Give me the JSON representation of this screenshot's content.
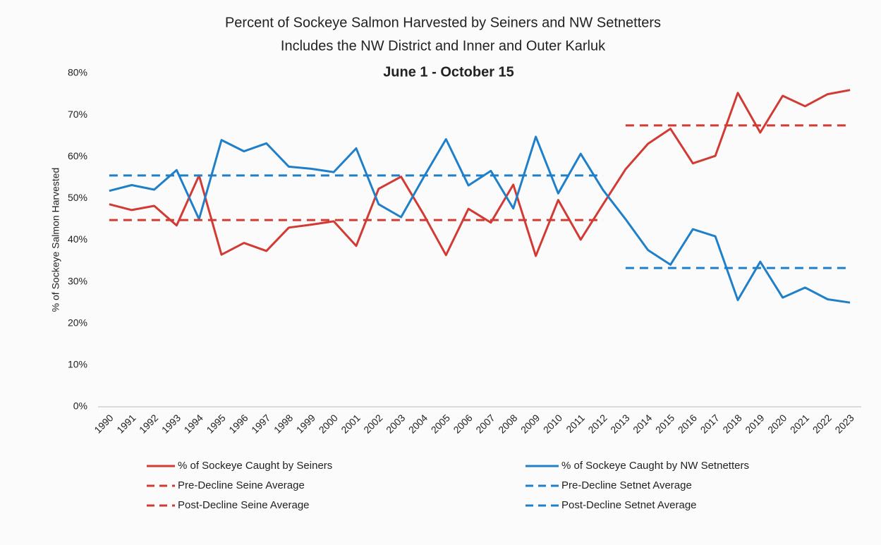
{
  "chart_data": {
    "type": "line",
    "title": "Percent of Sockeye Salmon Harvested by Seiners and NW Setnetters",
    "subtitle": "Includes the NW District and Inner and Outer Karluk",
    "date_range": "June 1 - October 15",
    "y_label": "% of Sockeye Salmon Harvested",
    "categories": [
      "1990",
      "1991",
      "1992",
      "1993",
      "1994",
      "1995",
      "1996",
      "1997",
      "1998",
      "1999",
      "2000",
      "2001",
      "2002",
      "2003",
      "2004",
      "2005",
      "2006",
      "2007",
      "2008",
      "2009",
      "2010",
      "2011",
      "2012",
      "2013",
      "2014",
      "2015",
      "2016",
      "2017",
      "2018",
      "2019",
      "2020",
      "2021",
      "2022",
      "2023"
    ],
    "ylim": [
      0,
      80
    ],
    "yticks": [
      {
        "value": 0,
        "label": "0%"
      },
      {
        "value": 10,
        "label": "10%"
      },
      {
        "value": 20,
        "label": "20%"
      },
      {
        "value": 30,
        "label": "30%"
      },
      {
        "value": 40,
        "label": "40%"
      },
      {
        "value": 50,
        "label": "50%"
      },
      {
        "value": 60,
        "label": "60%"
      },
      {
        "value": 70,
        "label": "70%"
      },
      {
        "value": 80,
        "label": "80%"
      }
    ],
    "grid": false,
    "series": [
      {
        "name": "% of Sockeye Caught by Seiners",
        "color": "#d23a34",
        "dashed": false,
        "values": [
          48.6,
          47.2,
          48.2,
          43.5,
          55.5,
          36.5,
          39.3,
          37.4,
          43,
          43.7,
          44.5,
          38.6,
          52.3,
          55.2,
          46.2,
          36.4,
          47.5,
          44.2,
          53.3,
          36.2,
          49.6,
          40.1,
          48.6,
          57,
          63.1,
          66.7,
          58.4,
          60.2,
          75.3,
          65.8,
          74.6,
          72.1,
          75,
          76
        ]
      },
      {
        "name": "% of Sockeye Caught by NW Setnetters",
        "color": "#1f7fc8",
        "dashed": false,
        "values": [
          51.8,
          53.2,
          52.1,
          56.8,
          45,
          64,
          61.3,
          63.2,
          57.6,
          57.1,
          56.3,
          62,
          48.6,
          45.5,
          55,
          64.2,
          53.1,
          56.6,
          47.6,
          64.8,
          51.2,
          60.7,
          52,
          45,
          37.6,
          34.1,
          42.6,
          40.9,
          25.6,
          34.8,
          26.2,
          28.6,
          25.8,
          25
        ]
      },
      {
        "name": "Pre-Decline Seine Average",
        "color": "#d23a34",
        "dashed": true,
        "values": [
          44.8,
          44.8,
          44.8,
          44.8,
          44.8,
          44.8,
          44.8,
          44.8,
          44.8,
          44.8,
          44.8,
          44.8,
          44.8,
          44.8,
          44.8,
          44.8,
          44.8,
          44.8,
          44.8,
          44.8,
          44.8,
          44.8,
          44.8,
          null,
          null,
          null,
          null,
          null,
          null,
          null,
          null,
          null,
          null,
          null
        ]
      },
      {
        "name": "Pre-Decline Setnet Average",
        "color": "#1f7fc8",
        "dashed": true,
        "values": [
          55.5,
          55.5,
          55.5,
          55.5,
          55.5,
          55.5,
          55.5,
          55.5,
          55.5,
          55.5,
          55.5,
          55.5,
          55.5,
          55.5,
          55.5,
          55.5,
          55.5,
          55.5,
          55.5,
          55.5,
          55.5,
          55.5,
          55.5,
          null,
          null,
          null,
          null,
          null,
          null,
          null,
          null,
          null,
          null,
          null
        ]
      },
      {
        "name": "Post-Decline Seine Average",
        "color": "#d23a34",
        "dashed": true,
        "values": [
          null,
          null,
          null,
          null,
          null,
          null,
          null,
          null,
          null,
          null,
          null,
          null,
          null,
          null,
          null,
          null,
          null,
          null,
          null,
          null,
          null,
          null,
          null,
          67.5,
          67.5,
          67.5,
          67.5,
          67.5,
          67.5,
          67.5,
          67.5,
          67.5,
          67.5,
          67.5
        ]
      },
      {
        "name": "Post-Decline Setnet Average",
        "color": "#1f7fc8",
        "dashed": true,
        "values": [
          null,
          null,
          null,
          null,
          null,
          null,
          null,
          null,
          null,
          null,
          null,
          null,
          null,
          null,
          null,
          null,
          null,
          null,
          null,
          null,
          null,
          null,
          null,
          33.3,
          33.3,
          33.3,
          33.3,
          33.3,
          33.3,
          33.3,
          33.3,
          33.3,
          33.3,
          33.3
        ]
      }
    ]
  }
}
